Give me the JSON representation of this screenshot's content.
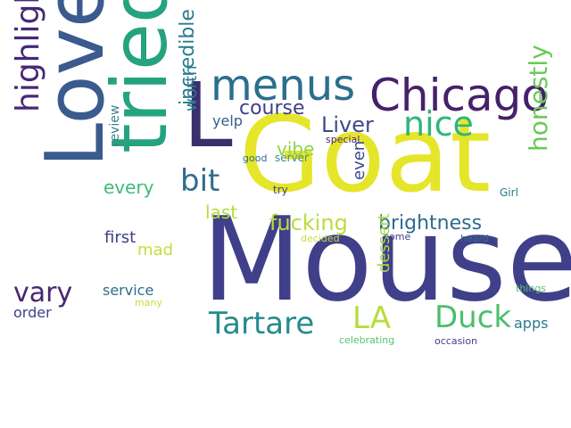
{
  "words": [
    {
      "text": "Mouse",
      "color": "#3f3f8a"
    },
    {
      "text": "Goat",
      "color": "#e5e52a"
    },
    {
      "text": "Loved",
      "color": "#3b5a8e"
    },
    {
      "text": "tried",
      "color": "#24a37e"
    },
    {
      "text": "L",
      "color": "#3b2f6e"
    },
    {
      "text": "Chicago",
      "color": "#46216a"
    },
    {
      "text": "menus",
      "color": "#2a6f8d"
    },
    {
      "text": "nice",
      "color": "#31b57a"
    },
    {
      "text": "highlights",
      "color": "#472877"
    },
    {
      "text": "Duck",
      "color": "#4cbe6c"
    },
    {
      "text": "Tartare",
      "color": "#258b8b"
    },
    {
      "text": "LA",
      "color": "#b8dc3a"
    },
    {
      "text": "bit",
      "color": "#2f6d8e"
    },
    {
      "text": "fucking",
      "color": "#b9dd3f"
    },
    {
      "text": "brightness",
      "color": "#2d6b8e"
    },
    {
      "text": "Liver",
      "color": "#3e4a89"
    },
    {
      "text": "honestly",
      "color": "#6cc95a"
    },
    {
      "text": "vary",
      "color": "#482576"
    },
    {
      "text": "incredible",
      "color": "#2a7b8e"
    },
    {
      "text": "course",
      "color": "#3f3f8a"
    },
    {
      "text": "every",
      "color": "#3fb97a"
    },
    {
      "text": "last",
      "color": "#b6dc3c"
    },
    {
      "text": "worth",
      "color": "#2b7a8e"
    },
    {
      "text": "yelp",
      "color": "#31628d"
    },
    {
      "text": "vibe",
      "color": "#8fd54a"
    },
    {
      "text": "even",
      "color": "#3a4c8a"
    },
    {
      "text": "dessert",
      "color": "#a9d93f"
    },
    {
      "text": "first",
      "color": "#3f3f8a"
    },
    {
      "text": "mad",
      "color": "#c4df3c"
    },
    {
      "text": "review",
      "color": "#3a7f8d"
    },
    {
      "text": "service",
      "color": "#2a6f8d"
    },
    {
      "text": "order",
      "color": "#3f3f8a"
    },
    {
      "text": "apps",
      "color": "#2a7b8e"
    },
    {
      "text": "server",
      "color": "#3f8c8d"
    },
    {
      "text": "good",
      "color": "#2a6f8d"
    },
    {
      "text": "special",
      "color": "#482576"
    },
    {
      "text": "try",
      "color": "#3f3f8a"
    },
    {
      "text": "Girl",
      "color": "#2a7b8e"
    },
    {
      "text": "decided",
      "color": "#c4df3c"
    },
    {
      "text": "come",
      "color": "#3f3f8a"
    },
    {
      "text": "heard",
      "color": "#3b6f8d"
    },
    {
      "text": "things",
      "color": "#53c46d"
    },
    {
      "text": "many",
      "color": "#c4df3c"
    },
    {
      "text": "celebrating",
      "color": "#53c46d"
    },
    {
      "text": "occasion",
      "color": "#3f3f8a"
    }
  ]
}
